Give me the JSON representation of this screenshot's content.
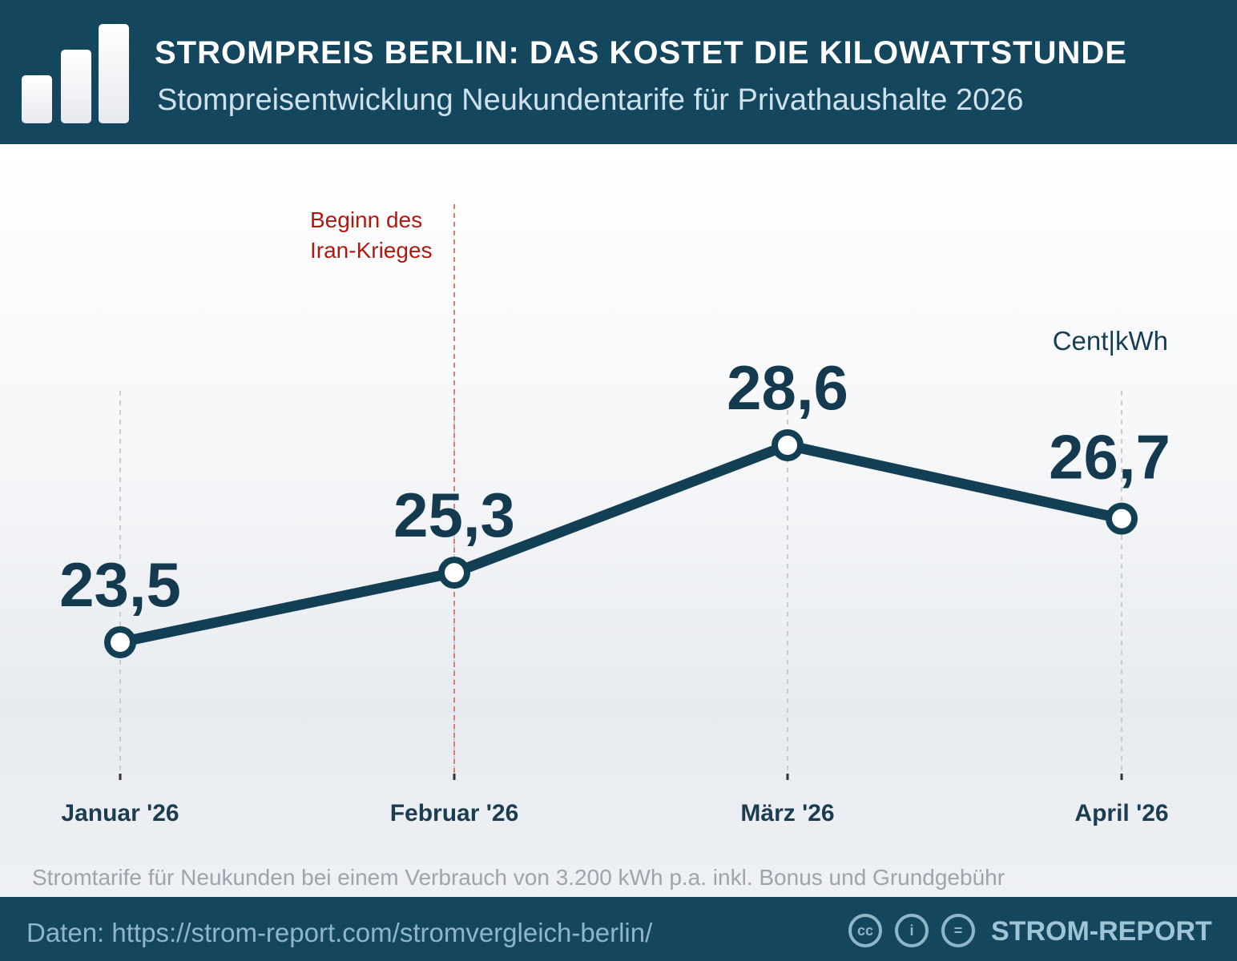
{
  "header": {
    "title": "STROMPREIS BERLIN: DAS KOSTET DIE KILOWATTSTUNDE",
    "subtitle": "Stompreisentwicklung Neukundentarife für Privathaushalte 2026"
  },
  "chart_data": {
    "type": "line",
    "categories": [
      "Januar '26",
      "Februar '26",
      "März '26",
      "April '26"
    ],
    "series": [
      {
        "values": [
          23.5,
          25.3,
          28.6,
          26.7
        ]
      }
    ],
    "value_labels": [
      "23,5",
      "25,3",
      "28,6",
      "26,7"
    ],
    "unit_label": "Cent|kWh",
    "annotation": {
      "category": "Februar '26",
      "text": [
        "Beginn des",
        "Iran-Krieges"
      ],
      "color": "#b3180f"
    },
    "line_color": "#133f55",
    "grid": "vertical dashed"
  },
  "footnote": "Stromtarife für Neukunden bei einem Verbrauch von 3.200 kWh p.a. inkl. Bonus und Grundgebühr",
  "footer": {
    "source": "Daten: https://strom-report.com/stromvergleich-berlin/",
    "brand": "STROM-REPORT",
    "license_icons": [
      "cc-icon",
      "by-icon",
      "nd-icon"
    ]
  }
}
